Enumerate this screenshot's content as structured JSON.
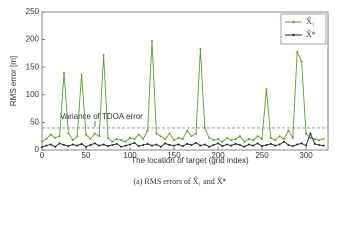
{
  "chart_data": {
    "type": "line",
    "xlabel": "The location of target (grid index)",
    "ylabel": "RMS error [m]",
    "caption": "(a) RMS errors of X̂₁ and X̂*",
    "x": [
      0,
      5,
      10,
      15,
      20,
      25,
      30,
      35,
      40,
      45,
      50,
      55,
      60,
      65,
      70,
      75,
      80,
      85,
      90,
      95,
      100,
      105,
      110,
      115,
      120,
      125,
      130,
      135,
      140,
      145,
      150,
      155,
      160,
      165,
      170,
      175,
      180,
      185,
      190,
      195,
      200,
      205,
      210,
      215,
      220,
      225,
      230,
      235,
      240,
      245,
      250,
      255,
      260,
      265,
      270,
      275,
      280,
      285,
      290,
      295,
      300,
      305,
      310,
      315,
      320
    ],
    "series": [
      {
        "name": "X̂₁",
        "color": "#5aa02c",
        "values": [
          15,
          20,
          28,
          22,
          25,
          140,
          30,
          18,
          25,
          137,
          28,
          20,
          30,
          25,
          172,
          22,
          15,
          20,
          18,
          15,
          22,
          20,
          28,
          20,
          35,
          198,
          30,
          25,
          20,
          30,
          18,
          22,
          20,
          35,
          25,
          30,
          183,
          40,
          22,
          18,
          20,
          15,
          22,
          18,
          20,
          25,
          15,
          20,
          18,
          25,
          20,
          110,
          22,
          18,
          25,
          20,
          35,
          22,
          178,
          160,
          30,
          22,
          20,
          18,
          20
        ]
      },
      {
        "name": "X̂*",
        "color": "#222222",
        "values": [
          5,
          8,
          10,
          6,
          12,
          9,
          7,
          10,
          8,
          11,
          6,
          9,
          12,
          8,
          10,
          7,
          9,
          11,
          6,
          8,
          10,
          13,
          7,
          9,
          11,
          8,
          10,
          6,
          12,
          9,
          8,
          10,
          7,
          11,
          9,
          13,
          8,
          10,
          6,
          9,
          12,
          7,
          10,
          8,
          11,
          9,
          6,
          10,
          8,
          12,
          7,
          9,
          11,
          8,
          10,
          15,
          9,
          7,
          10,
          12,
          8,
          30,
          11,
          9,
          8
        ]
      }
    ],
    "hline": {
      "value": 40,
      "label": "Variance of TDOA error"
    },
    "xlim": [
      0,
      325
    ],
    "xticks": [
      0,
      50,
      100,
      150,
      200,
      250,
      300
    ],
    "ylim": [
      0,
      250
    ],
    "yticks": [
      0,
      50,
      100,
      150,
      200,
      250
    ],
    "legend": "upper right"
  }
}
